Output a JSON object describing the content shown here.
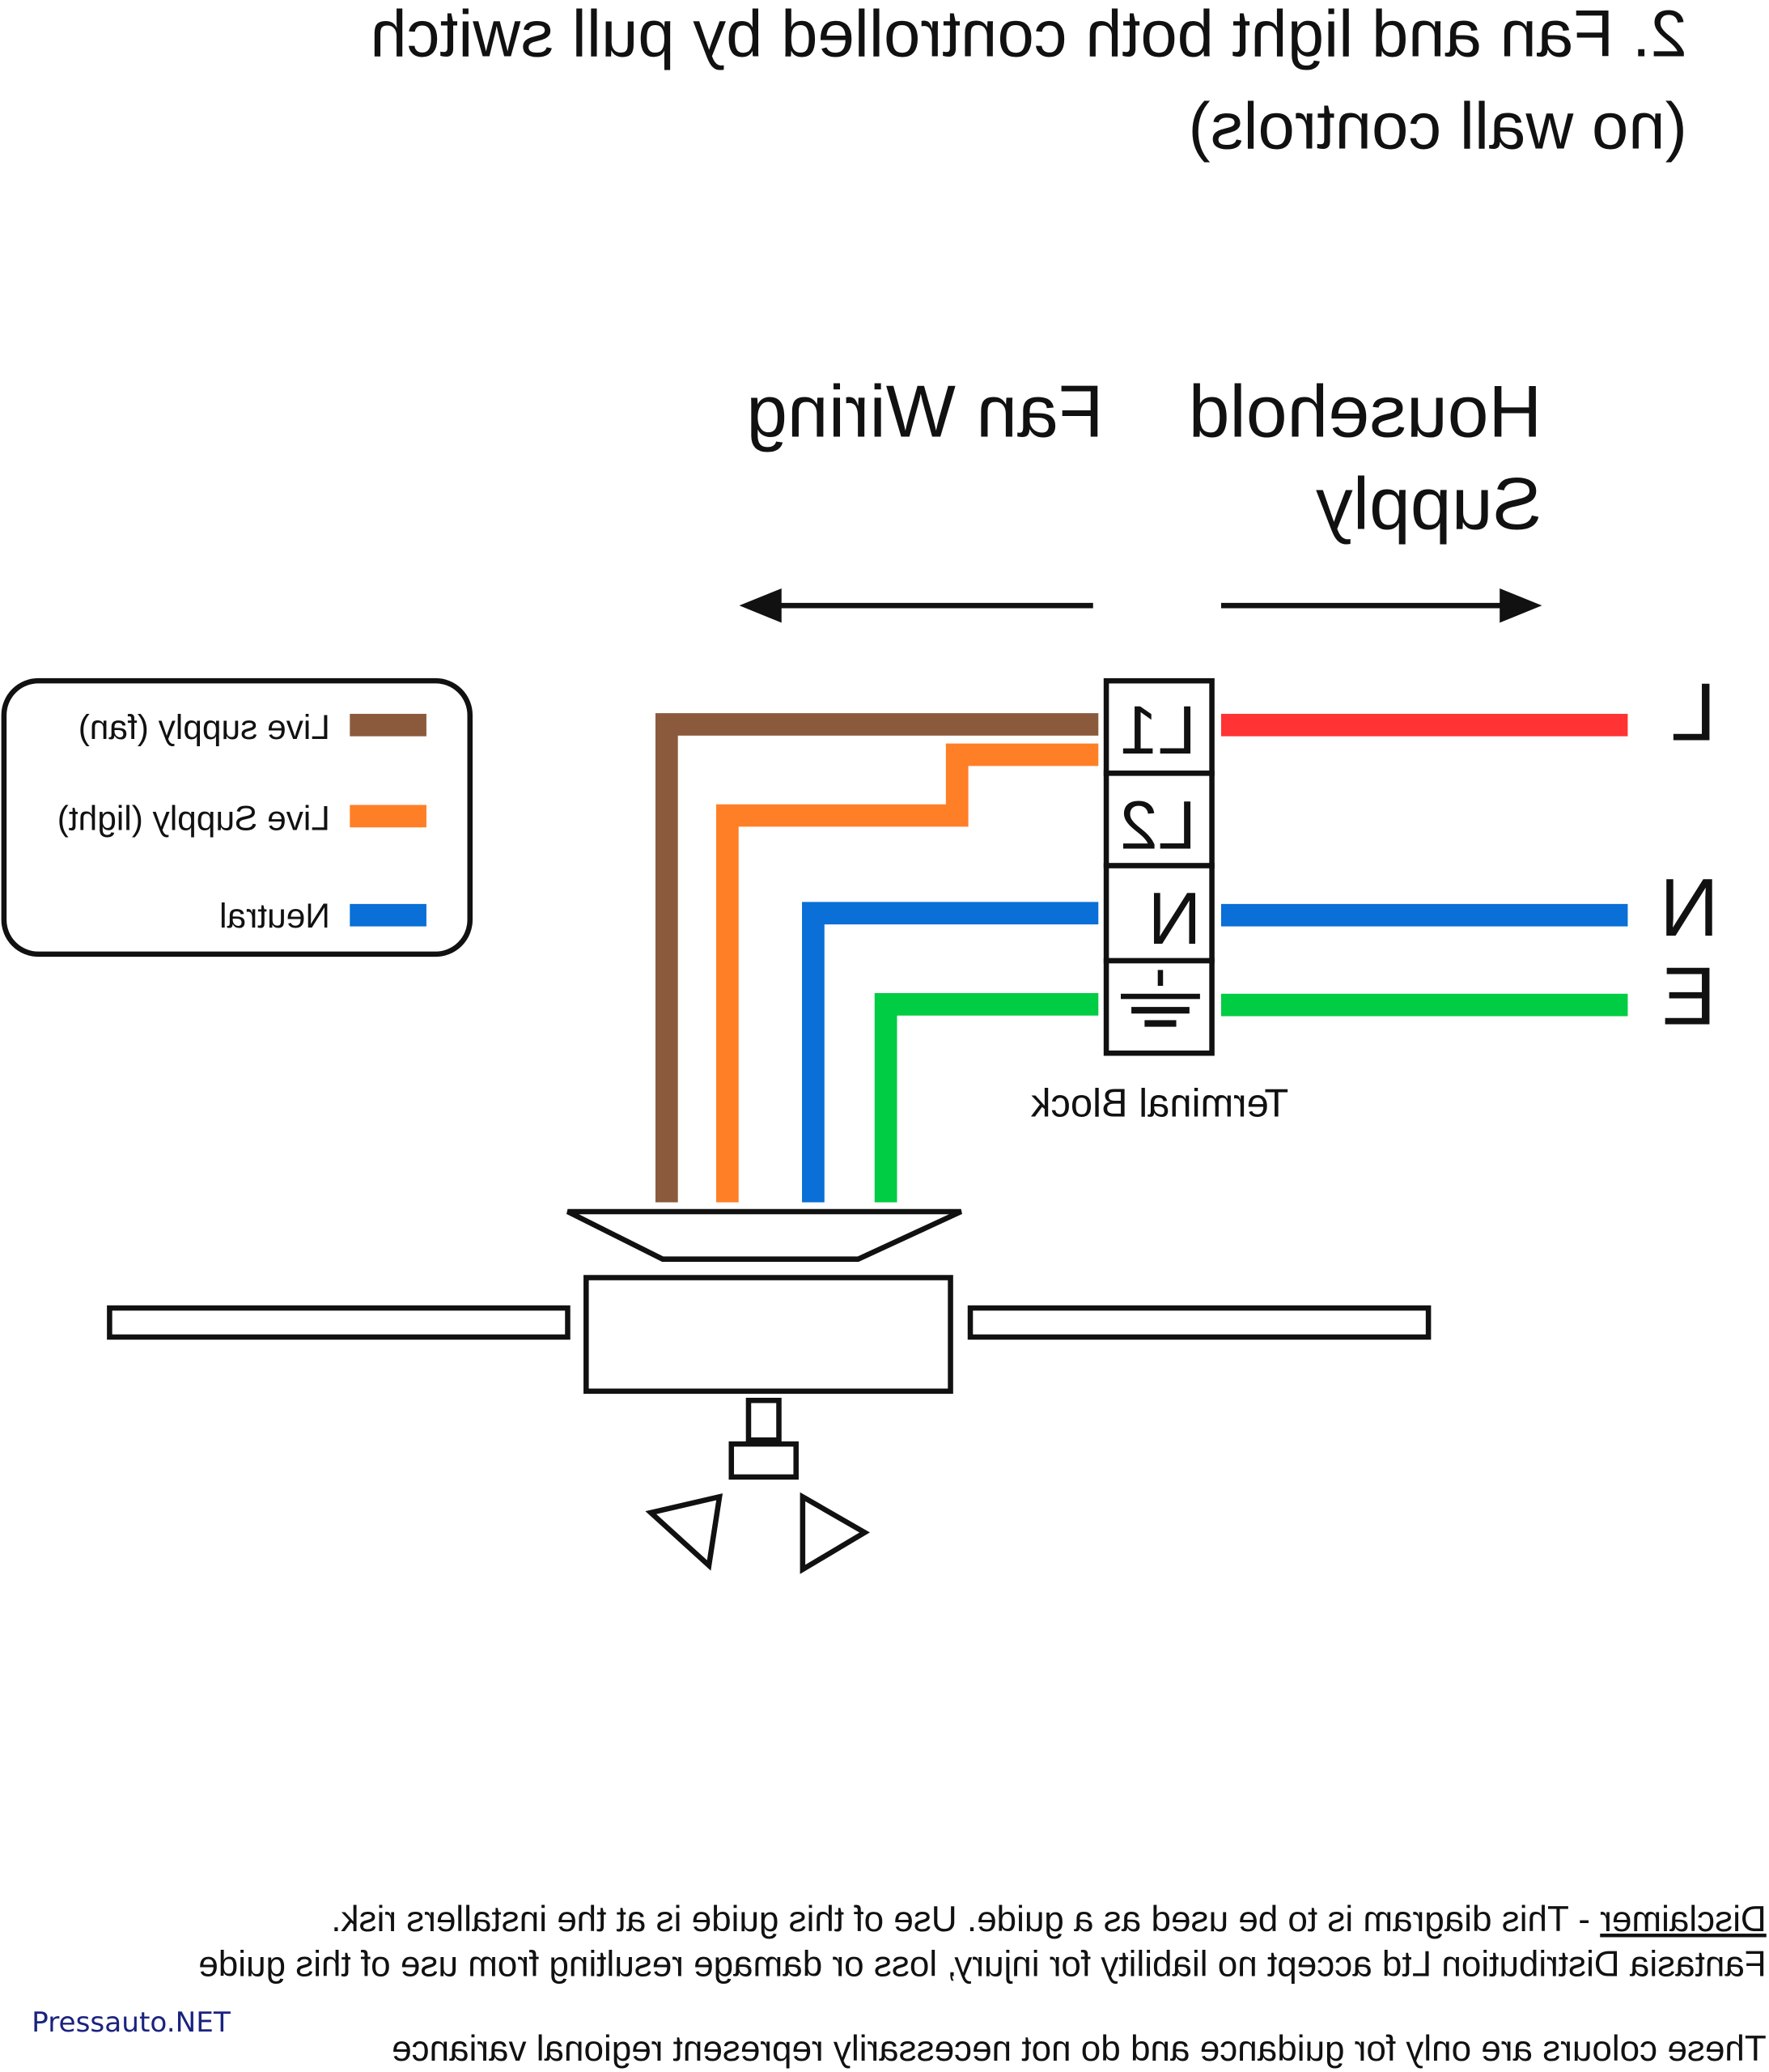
{
  "title": {
    "line1": "2. Fan and light both controlled by pull switch",
    "line2": "(no wall controls)"
  },
  "headings": {
    "fan_wiring": "Fan Wiring",
    "household_line1": "Household",
    "household_line2": "Supply"
  },
  "legend": {
    "items": [
      {
        "label": "Live supply (fan)",
        "color": "#8b5a3c"
      },
      {
        "label": "Live Supply (light)",
        "color": "#ff7f27"
      },
      {
        "label": "Neutral",
        "color": "#0a6fd6"
      }
    ]
  },
  "terminal_block": {
    "label": "Terminal Block",
    "terminals": [
      "L1",
      "L2",
      "N",
      "earth-icon"
    ]
  },
  "supply": {
    "live": {
      "label": "L",
      "color": "#ff3333"
    },
    "neutral": {
      "label": "N",
      "color": "#0a6fd6"
    },
    "earth": {
      "label": "E",
      "color": "#00cc44"
    }
  },
  "wire_colors": {
    "earth": "#00cc44"
  },
  "disclaimer": {
    "heading": "Disclaimer",
    "line1_rest": " - This diagram is to be used as a guide.  Use of this guide is at the installers risk.",
    "line2": "Fantasia Distribution Ltd accept no liability for injury, loss or damage resulting from use of this guide",
    "line3": "These colours are only for guidance and do not necessarily represent regional variance"
  },
  "watermark": "Pressauto.NET"
}
